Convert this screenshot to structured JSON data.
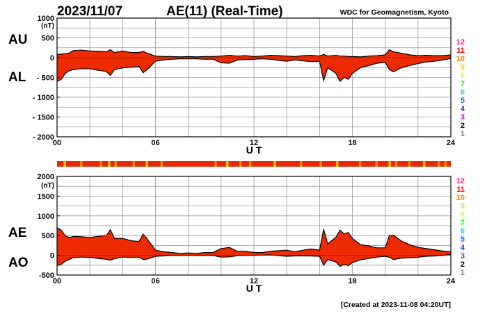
{
  "header": {
    "date": "2023/11/07",
    "title": "AE(11) (Real-Time)",
    "source": "WDC for Geomagnetism, Kyoto"
  },
  "footer": {
    "created": "[Created at 2023-11-08 04:20UT]"
  },
  "colors": {
    "fill": "#ee2a00",
    "grid": "#999999",
    "line": "#000000",
    "legend": [
      "#ff1c8a",
      "#e40000",
      "#ff7f00",
      "#ffd000",
      "#ccff33",
      "#2ed82e",
      "#22ccee",
      "#1a6aff",
      "#3333bb",
      "#cc00cc",
      "#000000",
      "#777777",
      "#bbbbbb"
    ],
    "strip": {
      "red": "#e82800",
      "orange": "#f08a00",
      "yellow": "#ffc000"
    }
  },
  "legend_levels": [
    "12",
    "11",
    "10",
    "9",
    "8",
    "7",
    "6",
    "5",
    "4",
    "3",
    "2",
    "1"
  ],
  "chart_data": [
    {
      "type": "area",
      "panel": "top",
      "series_labels": [
        "AU",
        "AL"
      ],
      "unit": "(nT)",
      "xlabel": "U T",
      "xlim": [
        0,
        24
      ],
      "ylim": [
        -2000,
        1000
      ],
      "xticks": [
        "00",
        "06",
        "12",
        "18",
        "24"
      ],
      "yticks": [
        "1000",
        "500",
        "0",
        "- 500",
        "- 1000",
        "- 1500",
        "- 2000"
      ],
      "x": [
        0,
        0.25,
        0.5,
        0.75,
        1,
        1.5,
        2,
        2.5,
        3,
        3.25,
        3.5,
        4,
        4.5,
        5,
        5.25,
        5.5,
        6,
        6.5,
        7,
        7.5,
        8,
        8.5,
        9,
        9.5,
        10,
        10.5,
        11,
        11.5,
        12,
        12.5,
        13,
        13.5,
        14,
        14.5,
        15,
        15.5,
        16,
        16.25,
        16.5,
        17,
        17.25,
        17.5,
        17.75,
        18,
        18.5,
        19,
        19.5,
        20,
        20.25,
        20.5,
        21,
        21.5,
        22,
        22.5,
        23,
        23.5,
        24
      ],
      "AU": [
        80,
        90,
        100,
        120,
        180,
        190,
        170,
        160,
        150,
        200,
        130,
        170,
        130,
        130,
        160,
        110,
        40,
        30,
        30,
        20,
        30,
        20,
        30,
        30,
        40,
        60,
        40,
        50,
        30,
        40,
        60,
        50,
        40,
        30,
        50,
        60,
        40,
        80,
        40,
        60,
        40,
        40,
        30,
        30,
        20,
        40,
        50,
        70,
        200,
        150,
        110,
        70,
        50,
        60,
        50,
        50,
        70
      ],
      "AL": [
        -600,
        -550,
        -400,
        -330,
        -300,
        -280,
        -280,
        -320,
        -350,
        -450,
        -300,
        -260,
        -240,
        -220,
        -380,
        -300,
        -90,
        -60,
        -40,
        -30,
        -30,
        -30,
        -40,
        -40,
        -130,
        -140,
        -60,
        -50,
        -40,
        -30,
        -40,
        -70,
        -90,
        -60,
        -80,
        -100,
        -90,
        -580,
        -250,
        -400,
        -600,
        -500,
        -550,
        -400,
        -250,
        -200,
        -140,
        -120,
        -300,
        -360,
        -250,
        -200,
        -150,
        -110,
        -90,
        -60,
        -20
      ]
    },
    {
      "type": "area",
      "panel": "bottom",
      "series_labels": [
        "AE",
        "AO"
      ],
      "unit": "(nT)",
      "xlabel": "U T",
      "xlim": [
        0,
        24
      ],
      "ylim": [
        -500,
        2000
      ],
      "xticks": [
        "00",
        "06",
        "12",
        "18",
        "24"
      ],
      "yticks": [
        "2000",
        "1500",
        "1000",
        "500",
        "0",
        "-500"
      ],
      "x": [
        0,
        0.25,
        0.5,
        0.75,
        1,
        1.5,
        2,
        2.5,
        3,
        3.25,
        3.5,
        4,
        4.5,
        5,
        5.25,
        5.5,
        6,
        6.5,
        7,
        7.5,
        8,
        8.5,
        9,
        9.5,
        10,
        10.5,
        11,
        11.5,
        12,
        12.5,
        13,
        13.5,
        14,
        14.5,
        15,
        15.5,
        16,
        16.25,
        16.5,
        17,
        17.25,
        17.5,
        17.75,
        18,
        18.5,
        19,
        19.5,
        20,
        20.25,
        20.5,
        21,
        21.5,
        22,
        22.5,
        23,
        23.5,
        24
      ],
      "AE": [
        700,
        640,
        500,
        450,
        480,
        470,
        450,
        480,
        500,
        650,
        430,
        430,
        370,
        350,
        540,
        410,
        130,
        90,
        70,
        50,
        60,
        50,
        70,
        70,
        170,
        200,
        100,
        100,
        70,
        70,
        100,
        120,
        130,
        90,
        130,
        160,
        130,
        660,
        290,
        460,
        640,
        540,
        580,
        430,
        270,
        240,
        190,
        190,
        500,
        510,
        360,
        270,
        200,
        170,
        140,
        110,
        90
      ],
      "AO": [
        -260,
        -230,
        -150,
        -105,
        -60,
        -45,
        -55,
        -80,
        -100,
        -125,
        -85,
        -45,
        -55,
        -45,
        -110,
        -95,
        -25,
        -15,
        -5,
        -5,
        0,
        -5,
        -5,
        -5,
        -45,
        -40,
        -10,
        0,
        -5,
        5,
        10,
        -10,
        -25,
        -15,
        -15,
        -20,
        -25,
        -250,
        -105,
        -170,
        -280,
        -230,
        -260,
        -185,
        -115,
        -80,
        -45,
        -25,
        -50,
        -105,
        -70,
        -65,
        -50,
        -25,
        -20,
        -5,
        25
      ]
    }
  ]
}
